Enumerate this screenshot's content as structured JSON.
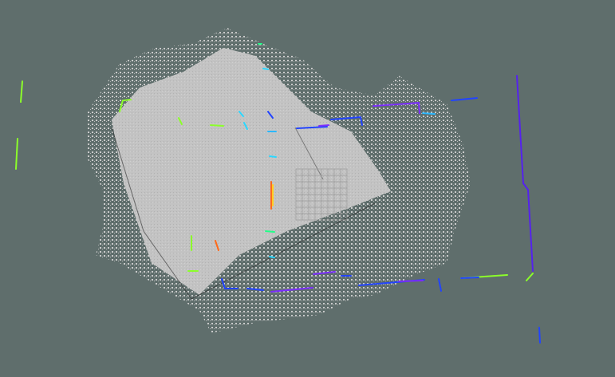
{
  "viewport": {
    "background": "#5f6e6c",
    "map_color": "#c3c3c3",
    "grid_color": "#9a9a9a",
    "scan_palette": [
      "#2255ff",
      "#7b2cff",
      "#8cff2a",
      "#2bd7ff",
      "#ff6a1a",
      "#22ff88"
    ]
  }
}
